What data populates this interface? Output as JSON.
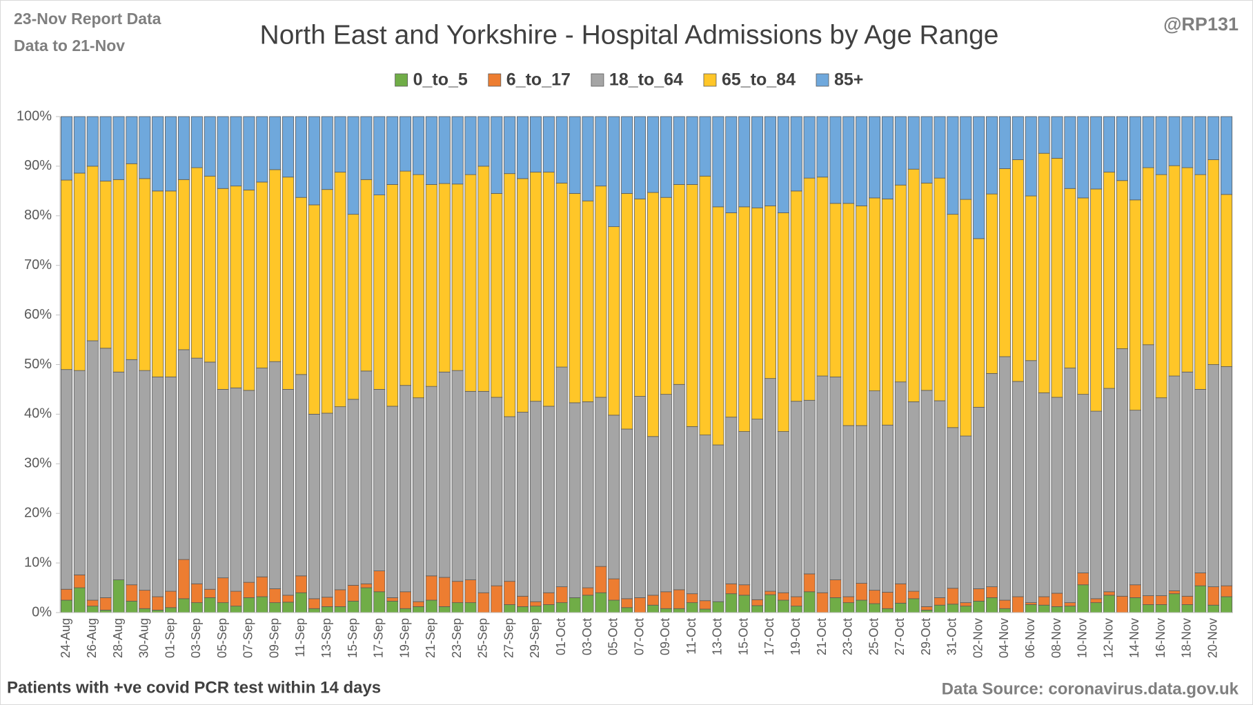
{
  "chart_data": {
    "type": "stacked_bar",
    "title": "North East and Yorkshire - Hospital Admissions by Age Range",
    "annotations": [
      "23-Nov Report Data",
      "Data to 21-Nov",
      "@RP131",
      "Patients with  +ve covid PCR test within 14 days",
      "Data Source: coronavirus.data.gov.uk"
    ],
    "categories": [
      "24-Aug",
      null,
      "26-Aug",
      null,
      "28-Aug",
      null,
      "30-Aug",
      null,
      "01-Sep",
      null,
      "03-Sep",
      null,
      "05-Sep",
      null,
      "07-Sep",
      null,
      "09-Sep",
      null,
      "11-Sep",
      null,
      "13-Sep",
      null,
      "15-Sep",
      null,
      "17-Sep",
      null,
      "19-Sep",
      null,
      "21-Sep",
      null,
      "23-Sep",
      null,
      "25-Sep",
      null,
      "27-Sep",
      null,
      "29-Sep",
      null,
      "01-Oct",
      null,
      "03-Oct",
      null,
      "05-Oct",
      null,
      "07-Oct",
      null,
      "09-Oct",
      null,
      "11-Oct",
      null,
      "13-Oct",
      null,
      "15-Oct",
      null,
      "17-Oct",
      null,
      "19-Oct",
      null,
      "21-Oct",
      null,
      "23-Oct",
      null,
      "25-Oct",
      null,
      "27-Oct",
      null,
      "29-Oct",
      null,
      "31-Oct",
      null,
      "02-Nov",
      null,
      "04-Nov",
      null,
      "06-Nov",
      null,
      "08-Nov",
      null,
      "10-Nov",
      null,
      "12-Nov",
      null,
      "14-Nov",
      null,
      "16-Nov",
      null,
      "18-Nov",
      null,
      "20-Nov",
      null
    ],
    "series": [
      {
        "name": "0_to_5",
        "color": "#70ad47",
        "values": [
          2.5,
          5,
          1.3,
          0.5,
          6.6,
          2.3,
          0.8,
          0.5,
          1,
          2.8,
          2,
          3,
          2,
          1.3,
          3,
          3.2,
          2,
          2.1,
          4,
          0.8,
          1.2,
          1.2,
          2.3,
          5,
          4.2,
          2.3,
          0.8,
          1.2,
          2.5,
          1.2,
          2,
          2,
          0,
          0,
          1.6,
          1.2,
          1.3,
          1.6,
          2,
          3,
          3.5,
          4,
          2.5,
          1,
          0,
          1.5,
          0.8,
          0.8,
          2,
          0.7,
          2.2,
          3.8,
          3.5,
          1.4,
          3.6,
          2.5,
          1.3,
          4.2,
          0,
          3,
          2,
          2.5,
          1.8,
          0.8,
          1.9,
          2.8,
          0.5,
          1.5,
          1.7,
          1.3,
          2.3,
          3,
          0.8,
          0,
          1.6,
          1.5,
          1.2,
          1.3,
          5.6,
          2,
          3.5,
          0,
          3,
          1.6,
          1.6,
          3.8,
          1.6,
          5.4,
          1.5,
          3.2
        ]
      },
      {
        "name": "6_to_17",
        "color": "#ed7d31",
        "values": [
          2.2,
          2.6,
          1.2,
          2.5,
          0,
          3.3,
          3.7,
          2.7,
          3.3,
          7.9,
          3.8,
          1.7,
          5,
          3,
          3.1,
          4,
          2.8,
          1.4,
          3.4,
          2,
          1.9,
          3.4,
          3.2,
          0.8,
          4.2,
          0.7,
          3.4,
          1,
          4.9,
          5.9,
          4.3,
          4.6,
          4,
          5.4,
          4.7,
          2.1,
          0.9,
          2.4,
          3.2,
          0,
          1.5,
          5.3,
          4.3,
          1.8,
          3,
          2,
          3.4,
          3.8,
          1.8,
          1.7,
          0,
          2,
          2.1,
          1.2,
          0.7,
          1.5,
          1.9,
          3.6,
          4,
          3.6,
          1.2,
          3.4,
          2.7,
          3.3,
          3.9,
          1.5,
          0.7,
          1.5,
          3.2,
          0.7,
          2.5,
          2.2,
          1.7,
          3.2,
          0.4,
          1.7,
          2.7,
          0.7,
          2.4,
          0.8,
          0.7,
          3.3,
          2.6,
          1.8,
          1.8,
          0.6,
          1.7,
          2.6,
          3.7,
          2.2
        ]
      },
      {
        "name": "18_to_64",
        "color": "#a5a5a5",
        "values": [
          44.3,
          41.2,
          52.3,
          50.3,
          41.9,
          45.4,
          44.3,
          44.3,
          43.2,
          42.3,
          45.5,
          45.8,
          38,
          41,
          38.7,
          42.1,
          45.8,
          41.5,
          40.6,
          37.2,
          37.1,
          36.9,
          37.5,
          42.9,
          36.6,
          38.6,
          41.6,
          41.1,
          38.2,
          41.4,
          42.5,
          38,
          40.6,
          38,
          33.2,
          37.1,
          40.4,
          37.6,
          44.3,
          39.3,
          37.5,
          34.1,
          33,
          34.2,
          40.6,
          32,
          39.8,
          41.4,
          33.7,
          33.4,
          31.6,
          33.6,
          30.9,
          36.4,
          42.9,
          32.5,
          39.4,
          35,
          43.7,
          40.9,
          34.5,
          31.8,
          40.2,
          33.7,
          40.7,
          38.2,
          43.6,
          39.7,
          32.4,
          33.6,
          36.6,
          43,
          49.1,
          43.4,
          48.8,
          41.1,
          39.5,
          47.3,
          36,
          37.8,
          41,
          49.9,
          35.2,
          50.6,
          39.9,
          43.3,
          45.2,
          37,
          44.8,
          44.2
        ]
      },
      {
        "name": "65_to_84",
        "color": "#ffc628",
        "values": [
          38.2,
          39.8,
          35.2,
          33.7,
          38.8,
          39.5,
          38.7,
          37.5,
          37.5,
          34.3,
          38.4,
          37.5,
          40.5,
          40.7,
          40.4,
          37.5,
          38.7,
          42.8,
          35.7,
          42.2,
          45.1,
          47.3,
          37.3,
          38.6,
          39.2,
          44.7,
          43.2,
          45,
          40.7,
          38,
          37.6,
          43.7,
          45.4,
          41.1,
          49,
          47.1,
          46.2,
          47.2,
          37.1,
          42.2,
          40.5,
          42.6,
          38,
          47.5,
          39.8,
          49.2,
          39.7,
          40.3,
          48.8,
          52.2,
          48,
          41.2,
          45.3,
          42.6,
          34.8,
          44.1,
          42.4,
          44.8,
          40.1,
          35,
          44.8,
          44.3,
          38.9,
          45.6,
          39.7,
          46.9,
          41.8,
          44.9,
          43,
          47.7,
          34,
          36.2,
          37.9,
          44.7,
          33.2,
          48.3,
          48.2,
          36.2,
          39.6,
          44.8,
          43.6,
          33.9,
          42.4,
          35.7,
          45,
          42.4,
          41.2,
          43.3,
          41.3,
          34.7
        ]
      },
      {
        "name": "85+",
        "color": "#6fa8dc",
        "values": [
          12.8,
          11.4,
          10,
          13,
          12.7,
          9.5,
          12.5,
          15,
          15,
          12.7,
          10.3,
          12,
          14.5,
          14,
          14.8,
          13.2,
          10.7,
          12.2,
          16.3,
          17.8,
          14.7,
          11.2,
          19.7,
          12.7,
          15.8,
          13.7,
          11,
          11.7,
          13.7,
          13.5,
          13.6,
          11.7,
          10,
          15.5,
          11.5,
          12.5,
          11.2,
          11.2,
          13.4,
          15.5,
          17,
          14,
          22.2,
          15.5,
          16.6,
          15.3,
          16.3,
          13.7,
          13.7,
          12,
          18.2,
          19.4,
          18.2,
          18.4,
          18,
          19.4,
          15,
          12.4,
          12.2,
          17.5,
          17.5,
          18,
          16.4,
          16.6,
          13.8,
          10.6,
          13.4,
          12.4,
          19.7,
          16.7,
          24.6,
          15.6,
          10.5,
          8.7,
          16,
          7.4,
          8.4,
          14.5,
          16.4,
          14.6,
          11.2,
          12.9,
          16.8,
          10.3,
          11.7,
          9.9,
          10.3,
          11.7,
          8.7,
          15.7
        ]
      }
    ],
    "ylim": [
      0,
      100
    ],
    "yticks": [
      {
        "value": 0,
        "label": "0%"
      },
      {
        "value": 10,
        "label": "10%"
      },
      {
        "value": 20,
        "label": "20%"
      },
      {
        "value": 30,
        "label": "30%"
      },
      {
        "value": 40,
        "label": "40%"
      },
      {
        "value": 50,
        "label": "50%"
      },
      {
        "value": 60,
        "label": "60%"
      },
      {
        "value": 70,
        "label": "70%"
      },
      {
        "value": 80,
        "label": "80%"
      },
      {
        "value": 90,
        "label": "90%"
      },
      {
        "value": 100,
        "label": "100%"
      }
    ],
    "grid": false,
    "legend": "top"
  }
}
